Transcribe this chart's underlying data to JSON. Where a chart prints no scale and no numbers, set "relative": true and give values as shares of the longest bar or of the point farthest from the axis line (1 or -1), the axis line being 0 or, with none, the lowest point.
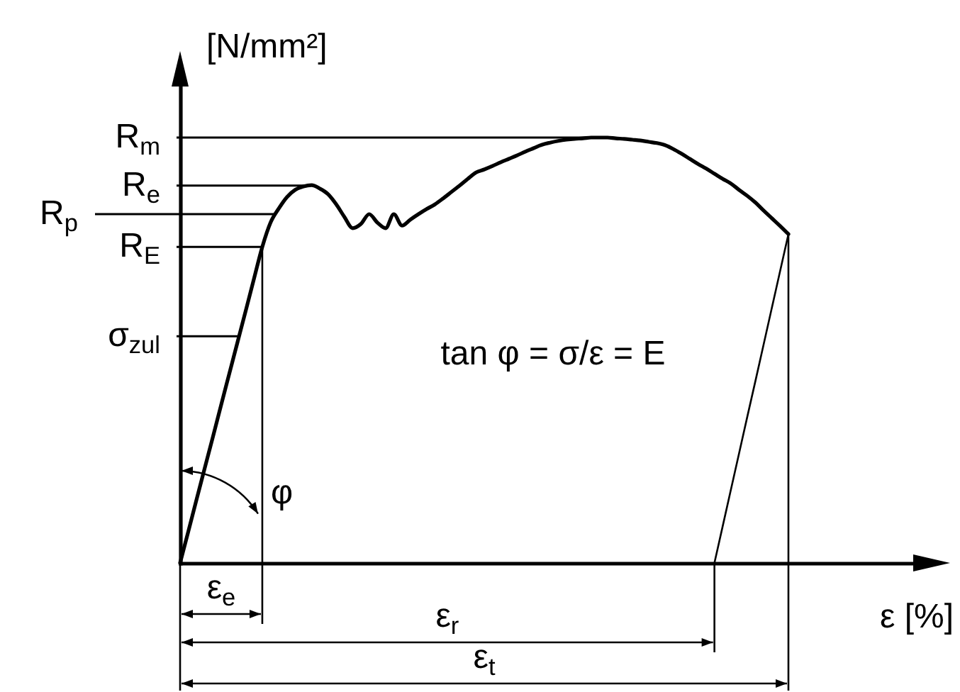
{
  "chart_data": {
    "type": "line",
    "relative": true,
    "xlabel": "ε [%]",
    "ylabel": "[N/mm²]",
    "categories": [
      null,
      null,
      null,
      null,
      null,
      null,
      null,
      null,
      null,
      null,
      null,
      null,
      null,
      null,
      null,
      null,
      null,
      null,
      null,
      null,
      null,
      null,
      null,
      null,
      null,
      null,
      null,
      null,
      null,
      null,
      null,
      null,
      null,
      null,
      null,
      null,
      null,
      null,
      null,
      null,
      null,
      null,
      null,
      null,
      null,
      null,
      null,
      null,
      null,
      null,
      null,
      null,
      null,
      null,
      null,
      null,
      null,
      null,
      null,
      null,
      null,
      null,
      null,
      null,
      null,
      null,
      null,
      null,
      null,
      null,
      null,
      null,
      null,
      null,
      null
    ],
    "series": [
      {
        "color": "#000000",
        "values": [
          0,
          0.074,
          0.149,
          0.223,
          0.297,
          0.372,
          0.446,
          0.52,
          0.594,
          0.669,
          0.743,
          0.8,
          0.833,
          0.86,
          0.877,
          0.885,
          0.888,
          0.88,
          0.867,
          0.843,
          0.813,
          0.787,
          0.797,
          0.82,
          0.8,
          0.787,
          0.82,
          0.793,
          0.807,
          0.82,
          0.832,
          0.843,
          0.857,
          0.872,
          0.887,
          0.903,
          0.918,
          0.925,
          0.933,
          0.942,
          0.95,
          0.958,
          0.967,
          0.975,
          0.983,
          0.988,
          0.992,
          0.995,
          0.997,
          0.998,
          1.0,
          1.0,
          1.0,
          0.998,
          0.997,
          0.995,
          0.993,
          0.99,
          0.987,
          0.982,
          0.973,
          0.962,
          0.95,
          0.938,
          0.927,
          0.915,
          0.903,
          0.892,
          0.877,
          0.863,
          0.847,
          0.828,
          0.81,
          0.792,
          0.773
        ]
      },
      {
        "color": "#000000",
        "values": [
          null,
          null,
          null,
          null,
          null,
          null,
          null,
          null,
          null,
          null,
          null,
          null,
          null,
          null,
          null,
          null,
          null,
          null,
          null,
          null,
          null,
          null,
          null,
          null,
          null,
          null,
          null,
          null,
          null,
          null,
          null,
          null,
          null,
          null,
          null,
          null,
          null,
          null,
          null,
          null,
          null,
          null,
          null,
          null,
          null,
          null,
          null,
          null,
          null,
          null,
          null,
          null,
          null,
          null,
          null,
          null,
          null,
          null,
          null,
          null,
          null,
          null,
          null,
          null,
          null,
          0,
          0.086,
          0.172,
          0.258,
          0.344,
          0.429,
          0.515,
          0.601,
          0.687,
          0.773
        ]
      }
    ],
    "ref_lines": [
      {
        "axis": "y",
        "value": 1.0,
        "label": "R$_{m}$",
        "color": "#000000"
      },
      {
        "axis": "y",
        "value": 0.887,
        "label": "R$_{e}$",
        "color": "#000000"
      },
      {
        "axis": "y",
        "value": 0.82,
        "label": "R$_{p}$",
        "color": "#000000"
      },
      {
        "axis": "y",
        "value": 0.743,
        "label": "R$_{E}$",
        "color": "#000000"
      },
      {
        "axis": "y",
        "value": 0.533,
        "label": "σ$_{zul}$",
        "color": "#000000"
      }
    ],
    "annotations": [
      "tan φ = σ/ε = E",
      "φ",
      "ε$_{e}$",
      "ε$_{r}$",
      "ε$_{t}$"
    ]
  }
}
